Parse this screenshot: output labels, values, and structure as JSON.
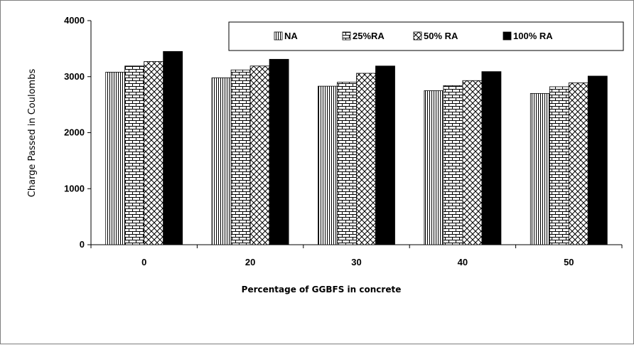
{
  "chart_data": {
    "type": "bar",
    "title": "",
    "xlabel": "Percentage of GGBFS in concrete",
    "ylabel": "Charge Passed in Coulombs",
    "categories": [
      "0",
      "20",
      "30",
      "40",
      "50"
    ],
    "ylim": [
      0,
      4000
    ],
    "yticks": [
      "0",
      "1000",
      "2000",
      "3000",
      "4000"
    ],
    "grid": false,
    "legend_position": "top-right",
    "series": [
      {
        "name": "NA",
        "pattern": "vertical-lines",
        "values": [
          3080,
          2980,
          2830,
          2750,
          2700
        ]
      },
      {
        "name": "25%RA",
        "pattern": "bricks",
        "values": [
          3190,
          3120,
          2900,
          2840,
          2820
        ]
      },
      {
        "name": "50% RA",
        "pattern": "diagonal-crosshatch",
        "values": [
          3270,
          3190,
          3060,
          2930,
          2890
        ]
      },
      {
        "name": "100% RA",
        "pattern": "solid",
        "values": [
          3450,
          3310,
          3190,
          3090,
          3010
        ]
      }
    ],
    "colors": {
      "fill": "#000000",
      "axis": "#000000",
      "background": "#ffffff"
    }
  }
}
